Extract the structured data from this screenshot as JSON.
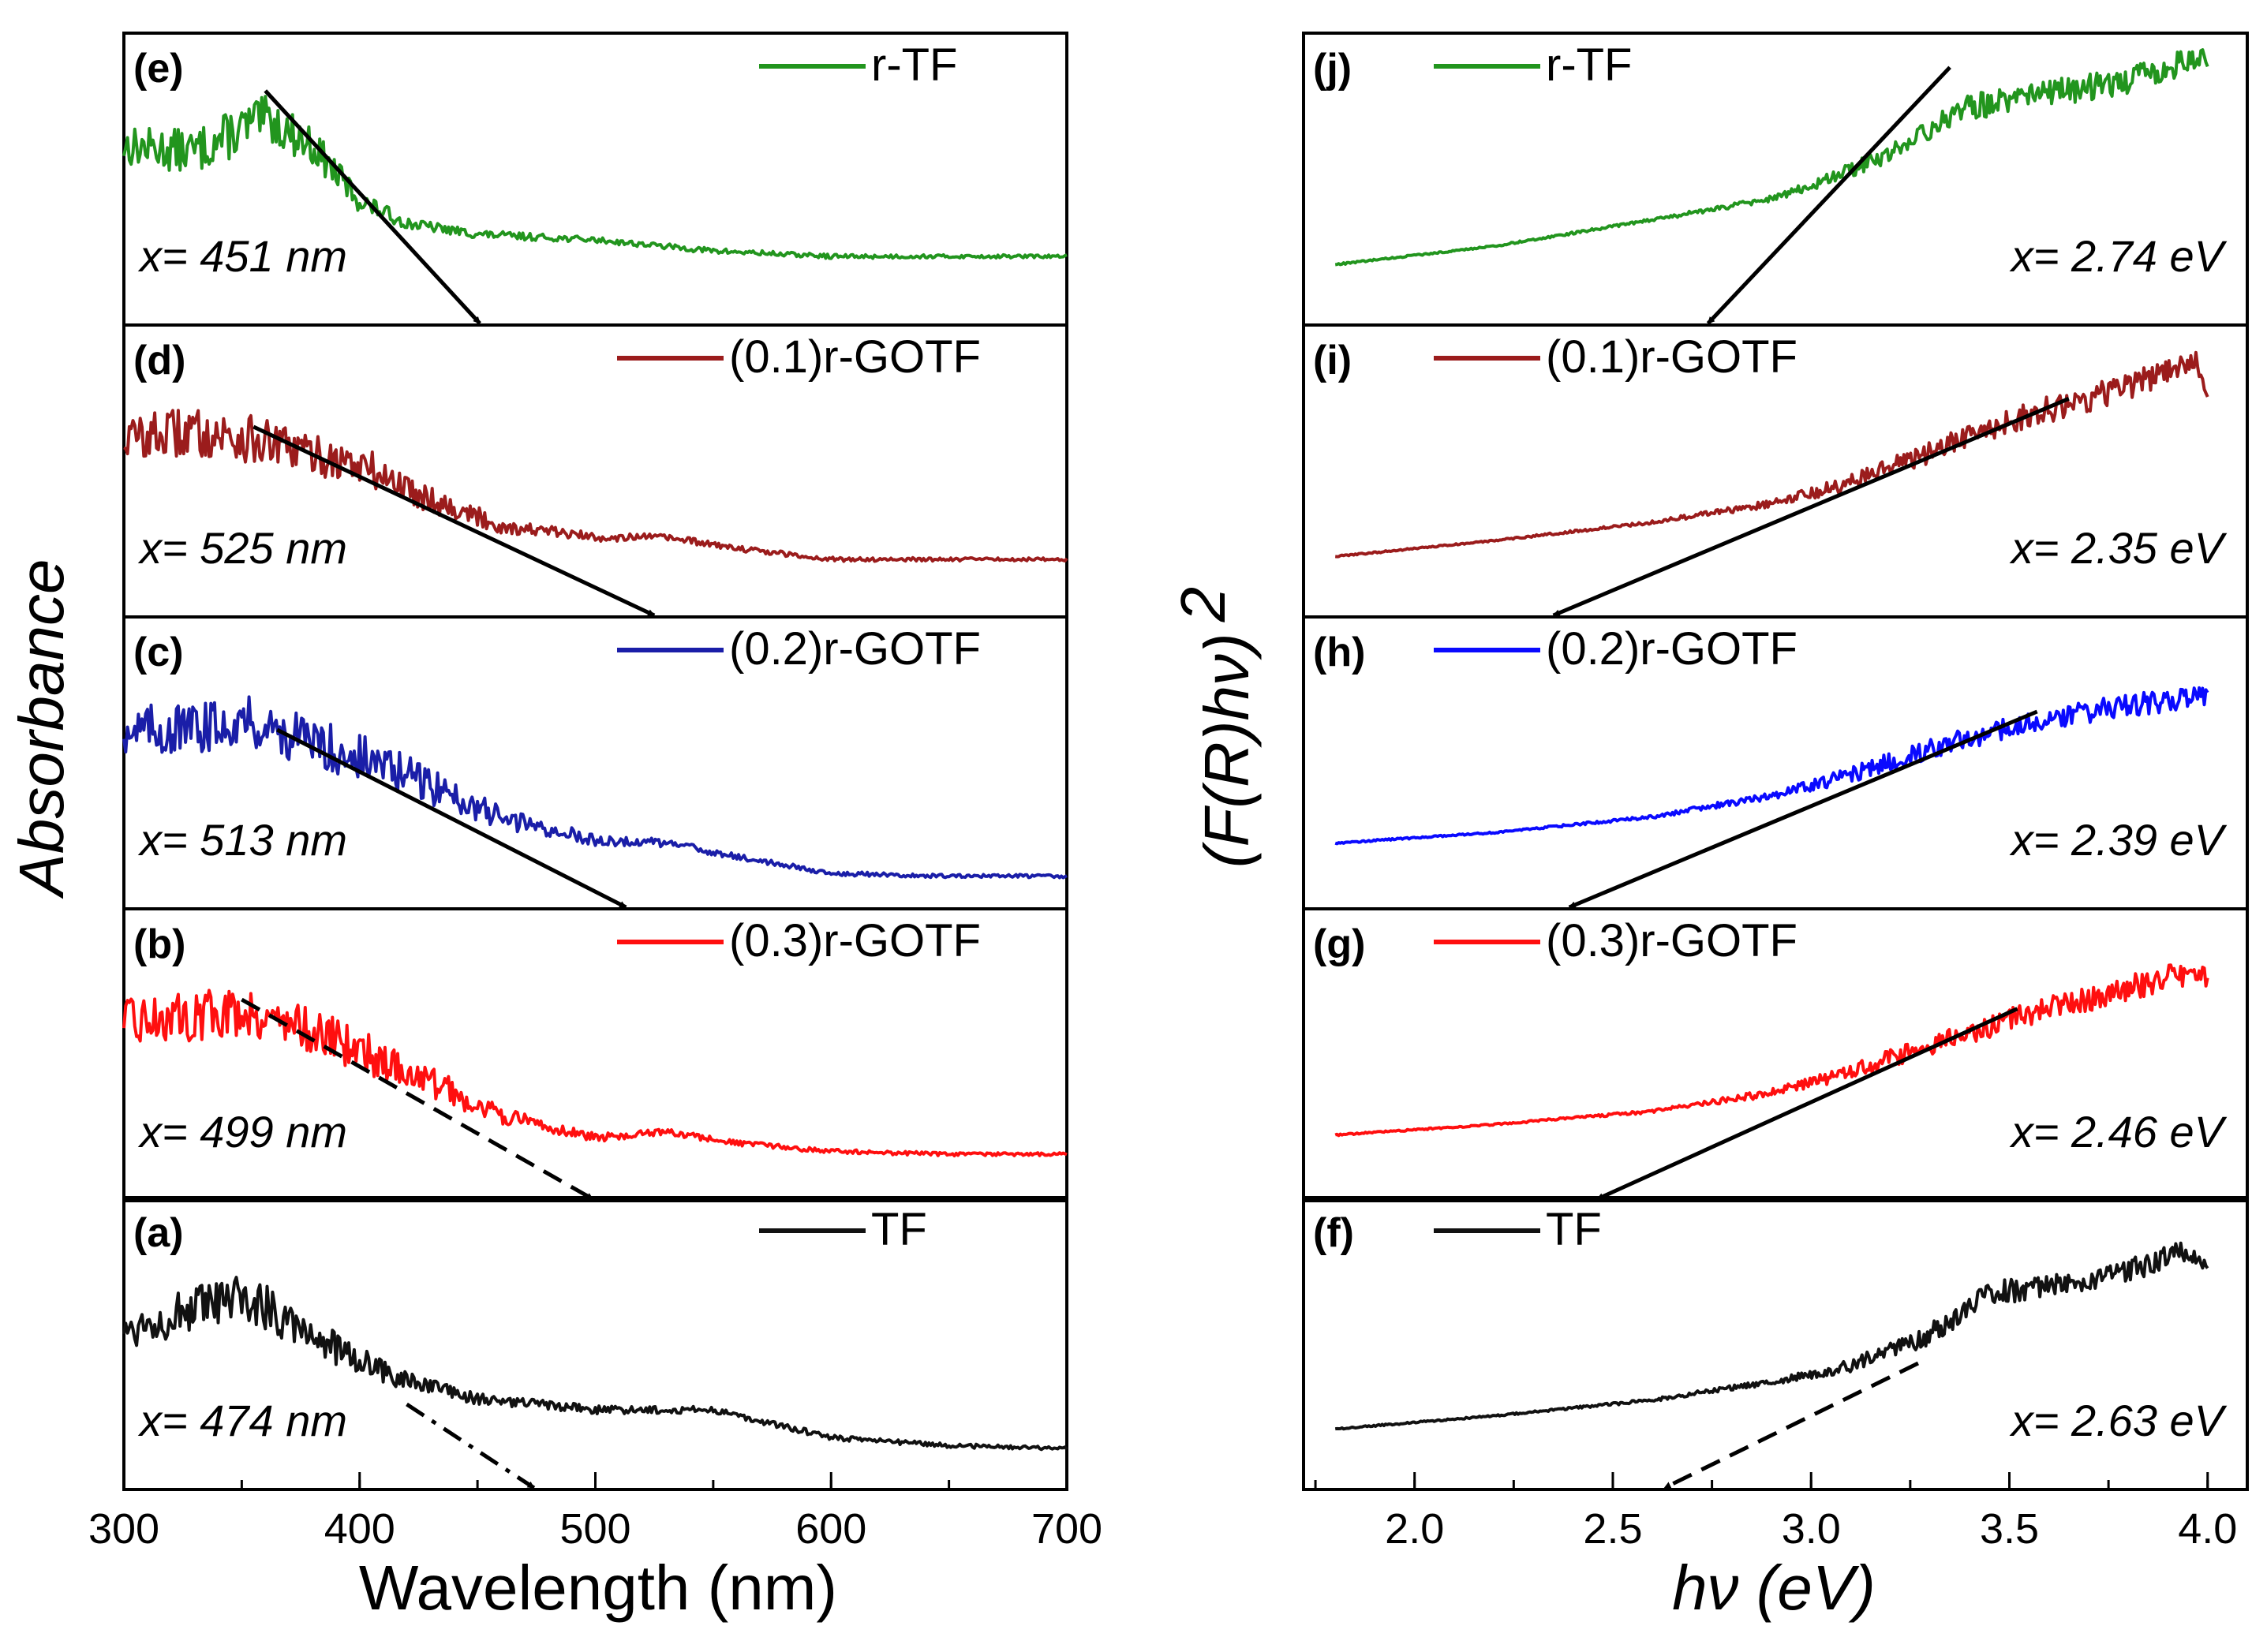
{
  "figure": {
    "left_ylabel": "Absorbance",
    "right_ylabel": "(F(R)hν)",
    "right_ylabel_exp": "2",
    "left_xlabel": "Wavelength (nm)",
    "right_xlabel": "hν (eV)",
    "left_xticks": [
      "300",
      "400",
      "500",
      "600",
      "700"
    ],
    "right_xticks": [
      "2.0",
      "2.5",
      "3.0",
      "3.5",
      "4.0"
    ]
  },
  "chart_data": [
    {
      "type": "line",
      "panel": "(e)",
      "legend": "r-TF",
      "color": "#22951e",
      "annotation": "x= 451 nm",
      "x": [
        300,
        330,
        350,
        360,
        380,
        400,
        420,
        450,
        500,
        550,
        600,
        650,
        700
      ],
      "values": [
        0.62,
        0.6,
        0.68,
        0.72,
        0.62,
        0.42,
        0.34,
        0.3,
        0.28,
        0.24,
        0.22,
        0.22,
        0.22
      ],
      "noise": [
        0.07,
        0.08,
        0.09,
        0.08,
        0.07,
        0.04,
        0.02,
        0.015,
        0.01,
        0.01,
        0.008,
        0.006,
        0.006
      ],
      "fit": [
        [
          360,
          0.82
        ],
        [
          451,
          0.0
        ]
      ],
      "fit_style": "solid",
      "ylim": [
        0,
        1
      ],
      "xlim": [
        300,
        700
      ]
    },
    {
      "type": "line",
      "panel": "(d)",
      "legend": "(0.1)r-GOTF",
      "color": "#9b1c1c",
      "annotation": "x= 525 nm",
      "x": [
        300,
        330,
        350,
        370,
        400,
        430,
        460,
        500,
        530,
        560,
        600,
        650,
        700
      ],
      "values": [
        0.62,
        0.64,
        0.62,
        0.58,
        0.52,
        0.4,
        0.3,
        0.26,
        0.26,
        0.22,
        0.18,
        0.18,
        0.18
      ],
      "noise": [
        0.08,
        0.09,
        0.09,
        0.08,
        0.08,
        0.05,
        0.03,
        0.015,
        0.012,
        0.01,
        0.008,
        0.006,
        0.006
      ],
      "fit": [
        [
          355,
          0.66
        ],
        [
          525,
          0.0
        ]
      ],
      "fit_style": "solid",
      "ylim": [
        0,
        1
      ],
      "xlim": [
        300,
        700
      ]
    },
    {
      "type": "line",
      "panel": "(c)",
      "legend": "(0.2)r-GOTF",
      "color": "#1a1ea8",
      "annotation": "x= 513 nm",
      "x": [
        300,
        330,
        350,
        370,
        400,
        430,
        460,
        500,
        530,
        560,
        600,
        650,
        700
      ],
      "values": [
        0.62,
        0.62,
        0.66,
        0.6,
        0.52,
        0.42,
        0.3,
        0.22,
        0.21,
        0.16,
        0.1,
        0.09,
        0.09
      ],
      "noise": [
        0.09,
        0.09,
        0.09,
        0.09,
        0.09,
        0.07,
        0.04,
        0.02,
        0.015,
        0.01,
        0.008,
        0.006,
        0.006
      ],
      "fit": [
        [
          365,
          0.62
        ],
        [
          513,
          0.0
        ]
      ],
      "fit_style": "solid",
      "ylim": [
        0,
        1
      ],
      "xlim": [
        300,
        700
      ]
    },
    {
      "type": "line",
      "panel": "(b)",
      "legend": "(0.3)r-GOTF",
      "color": "#ff0f0f",
      "annotation": "x= 499 nm",
      "x": [
        300,
        330,
        350,
        370,
        400,
        430,
        460,
        500,
        530,
        560,
        600,
        650,
        700
      ],
      "values": [
        0.62,
        0.64,
        0.66,
        0.62,
        0.52,
        0.4,
        0.28,
        0.2,
        0.22,
        0.18,
        0.15,
        0.14,
        0.14
      ],
      "noise": [
        0.08,
        0.09,
        0.09,
        0.08,
        0.08,
        0.06,
        0.03,
        0.015,
        0.012,
        0.01,
        0.008,
        0.006,
        0.006
      ],
      "fit": [
        [
          350,
          0.7
        ],
        [
          499,
          0.0
        ]
      ],
      "fit_style": "dashed",
      "ylim": [
        0,
        1
      ],
      "xlim": [
        300,
        700
      ]
    },
    {
      "type": "line",
      "panel": "(a)",
      "legend": "TF",
      "color": "#111111",
      "annotation": "x= 474 nm",
      "x": [
        300,
        320,
        350,
        370,
        390,
        420,
        450,
        500,
        550,
        600,
        650,
        700
      ],
      "values": [
        0.55,
        0.6,
        0.66,
        0.6,
        0.48,
        0.36,
        0.3,
        0.26,
        0.26,
        0.16,
        0.13,
        0.12
      ],
      "noise": [
        0.07,
        0.08,
        0.09,
        0.09,
        0.07,
        0.04,
        0.02,
        0.015,
        0.012,
        0.01,
        0.008,
        0.006
      ],
      "fit": [
        [
          420,
          0.28
        ],
        [
          474,
          0.0
        ]
      ],
      "fit_style": "dashdot",
      "ylim": [
        0,
        1
      ],
      "xlim": [
        300,
        700
      ]
    },
    {
      "type": "line",
      "panel": "(j)",
      "legend": "r-TF",
      "color": "#22951e",
      "annotation": "x= 2.74 eV",
      "x": [
        1.8,
        2.2,
        2.6,
        2.9,
        3.0,
        3.2,
        3.4,
        3.6,
        3.8,
        4.0
      ],
      "values": [
        0.2,
        0.27,
        0.37,
        0.45,
        0.5,
        0.62,
        0.8,
        0.85,
        0.9,
        1.0
      ],
      "noise": [
        0.003,
        0.003,
        0.006,
        0.012,
        0.018,
        0.035,
        0.05,
        0.05,
        0.05,
        0.05
      ],
      "fit": [
        [
          3.35,
          0.95
        ],
        [
          2.74,
          0.0
        ]
      ],
      "fit_style": "solid",
      "ylim": [
        0,
        1.05
      ],
      "xlim": [
        1.72,
        4.1
      ]
    },
    {
      "type": "line",
      "panel": "(i)",
      "legend": "(0.1)r-GOTF",
      "color": "#9b1c1c",
      "annotation": "x= 2.35 eV",
      "x": [
        1.8,
        2.2,
        2.6,
        2.9,
        3.1,
        3.3,
        3.5,
        3.7,
        3.9,
        3.97,
        4.0
      ],
      "values": [
        0.2,
        0.26,
        0.33,
        0.4,
        0.48,
        0.6,
        0.72,
        0.8,
        0.9,
        0.95,
        0.8
      ],
      "noise": [
        0.003,
        0.003,
        0.006,
        0.015,
        0.03,
        0.045,
        0.05,
        0.05,
        0.05,
        0.03,
        0.01
      ],
      "fit": [
        [
          3.65,
          0.8
        ],
        [
          2.35,
          0.0
        ]
      ],
      "fit_style": "solid",
      "ylim": [
        0,
        1.05
      ],
      "xlim": [
        1.72,
        4.1
      ]
    },
    {
      "type": "line",
      "panel": "(h)",
      "legend": "(0.2)r-GOTF",
      "color": "#0a0aff",
      "annotation": "x= 2.39 eV",
      "x": [
        1.8,
        2.2,
        2.6,
        2.9,
        3.1,
        3.3,
        3.5,
        3.7,
        3.9,
        4.0
      ],
      "values": [
        0.22,
        0.26,
        0.32,
        0.4,
        0.48,
        0.58,
        0.66,
        0.72,
        0.76,
        0.78
      ],
      "noise": [
        0.003,
        0.003,
        0.006,
        0.015,
        0.03,
        0.04,
        0.04,
        0.045,
        0.045,
        0.04
      ],
      "fit": [
        [
          3.57,
          0.72
        ],
        [
          2.39,
          0.0
        ]
      ],
      "fit_style": "solid",
      "ylim": [
        0,
        1.05
      ],
      "xlim": [
        1.72,
        4.1
      ]
    },
    {
      "type": "line",
      "panel": "(g)",
      "legend": "(0.3)r-GOTF",
      "color": "#ff0f0f",
      "annotation": "x= 2.46 eV",
      "x": [
        1.8,
        2.2,
        2.6,
        2.9,
        3.1,
        3.3,
        3.5,
        3.7,
        3.9,
        4.0
      ],
      "values": [
        0.22,
        0.26,
        0.31,
        0.38,
        0.46,
        0.56,
        0.66,
        0.74,
        0.82,
        0.82
      ],
      "noise": [
        0.003,
        0.003,
        0.006,
        0.015,
        0.03,
        0.04,
        0.045,
        0.05,
        0.05,
        0.04
      ],
      "fit": [
        [
          3.52,
          0.7
        ],
        [
          2.46,
          0.0
        ]
      ],
      "fit_style": "solid",
      "ylim": [
        0,
        1.05
      ],
      "xlim": [
        1.72,
        4.1
      ]
    },
    {
      "type": "line",
      "panel": "(f)",
      "legend": "TF",
      "color": "#111111",
      "annotation": "x= 2.63 eV",
      "x": [
        1.8,
        2.2,
        2.6,
        2.9,
        3.1,
        3.3,
        3.45,
        3.6,
        3.8,
        3.95,
        4.0
      ],
      "values": [
        0.2,
        0.25,
        0.31,
        0.38,
        0.44,
        0.56,
        0.72,
        0.74,
        0.8,
        0.88,
        0.82
      ],
      "noise": [
        0.003,
        0.003,
        0.006,
        0.012,
        0.025,
        0.04,
        0.045,
        0.045,
        0.045,
        0.04,
        0.02
      ],
      "fit": [
        [
          3.27,
          0.45
        ],
        [
          2.63,
          0.0
        ]
      ],
      "fit_style": "dashed",
      "ylim": [
        0,
        1.05
      ],
      "xlim": [
        1.72,
        4.1
      ]
    }
  ]
}
